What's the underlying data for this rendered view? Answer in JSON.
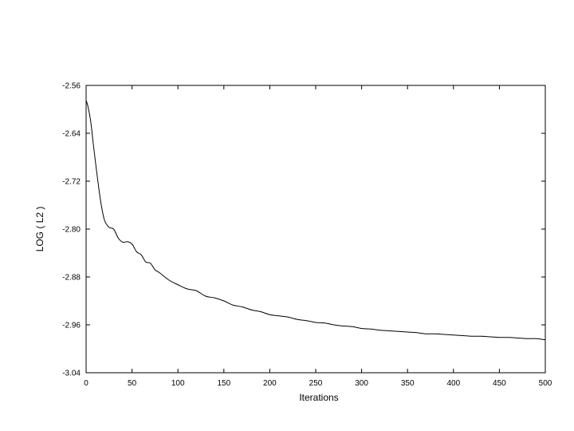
{
  "chart_data": {
    "type": "line",
    "title": "",
    "xlabel": "Iterations",
    "ylabel": "LOG ( L2 )",
    "xlim": [
      0,
      500
    ],
    "ylim": [
      -3.04,
      -2.56
    ],
    "xticks": [
      0,
      50,
      100,
      150,
      200,
      250,
      300,
      350,
      400,
      450,
      500
    ],
    "yticks": [
      -2.56,
      -2.64,
      -2.72,
      -2.8,
      -2.88,
      -2.96,
      -3.04
    ],
    "xtick_labels": [
      "0",
      "50",
      "100",
      "150",
      "200",
      "250",
      "300",
      "350",
      "400",
      "450",
      "500"
    ],
    "ytick_labels": [
      "-2.56",
      "-2.64",
      "-2.72",
      "-2.80",
      "-2.88",
      "-2.96",
      "-3.04"
    ],
    "grid": false,
    "legend": "none",
    "line_color": "#000000",
    "series": [
      {
        "x": [
          0,
          2,
          5,
          8,
          12,
          16,
          20,
          25,
          30,
          35,
          40,
          45,
          50,
          55,
          60,
          65,
          70,
          75,
          80,
          90,
          100,
          110,
          120,
          130,
          140,
          150,
          160,
          170,
          180,
          190,
          200,
          210,
          220,
          230,
          240,
          250,
          260,
          270,
          280,
          290,
          300,
          310,
          320,
          330,
          340,
          350,
          360,
          370,
          380,
          390,
          400,
          410,
          420,
          430,
          440,
          450,
          460,
          470,
          480,
          490,
          500
        ],
        "y": [
          -2.585,
          -2.595,
          -2.62,
          -2.66,
          -2.71,
          -2.755,
          -2.785,
          -2.797,
          -2.8,
          -2.815,
          -2.822,
          -2.821,
          -2.825,
          -2.838,
          -2.843,
          -2.855,
          -2.857,
          -2.868,
          -2.873,
          -2.885,
          -2.893,
          -2.9,
          -2.903,
          -2.912,
          -2.915,
          -2.92,
          -2.927,
          -2.93,
          -2.935,
          -2.938,
          -2.943,
          -2.945,
          -2.947,
          -2.951,
          -2.953,
          -2.956,
          -2.957,
          -2.96,
          -2.962,
          -2.963,
          -2.966,
          -2.967,
          -2.969,
          -2.97,
          -2.971,
          -2.972,
          -2.973,
          -2.975,
          -2.975,
          -2.976,
          -2.977,
          -2.978,
          -2.979,
          -2.979,
          -2.98,
          -2.981,
          -2.981,
          -2.982,
          -2.983,
          -2.983,
          -2.985
        ]
      }
    ]
  }
}
